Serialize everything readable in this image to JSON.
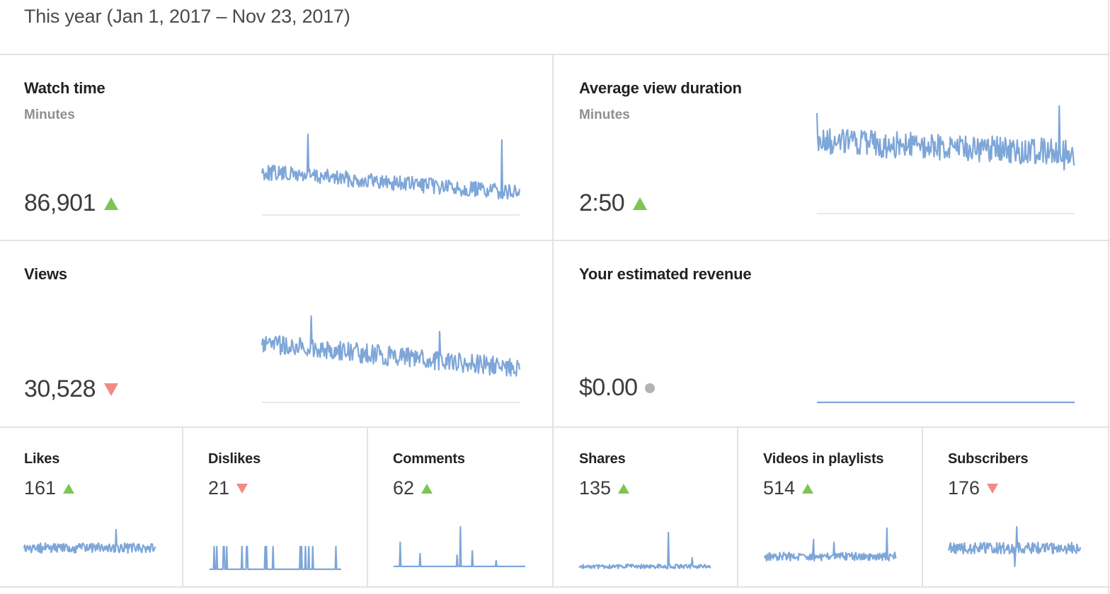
{
  "header": {
    "period": "This year (Jan 1, 2017 – Nov 23, 2017)"
  },
  "cards": {
    "watch_time": {
      "title": "Watch time",
      "subtitle": "Minutes",
      "value": "86,901",
      "trend": "up"
    },
    "avg_duration": {
      "title": "Average view duration",
      "subtitle": "Minutes",
      "value": "2:50",
      "trend": "up"
    },
    "views": {
      "title": "Views",
      "value": "30,528",
      "trend": "down"
    },
    "revenue": {
      "title": "Your estimated revenue",
      "value": "$0.00",
      "trend": "flat"
    }
  },
  "small": [
    {
      "title": "Likes",
      "value": "161",
      "trend": "up"
    },
    {
      "title": "Dislikes",
      "value": "21",
      "trend": "down"
    },
    {
      "title": "Comments",
      "value": "62",
      "trend": "up"
    },
    {
      "title": "Shares",
      "value": "135",
      "trend": "up"
    },
    {
      "title": "Videos in playlists",
      "value": "514",
      "trend": "up"
    },
    {
      "title": "Subscribers",
      "value": "176",
      "trend": "down"
    }
  ],
  "colors": {
    "line": "#7ea6d8",
    "baseline": "#e0e0e0",
    "up": "#7cc553",
    "down": "#f08b86",
    "flat": "#b3b3b3"
  }
}
